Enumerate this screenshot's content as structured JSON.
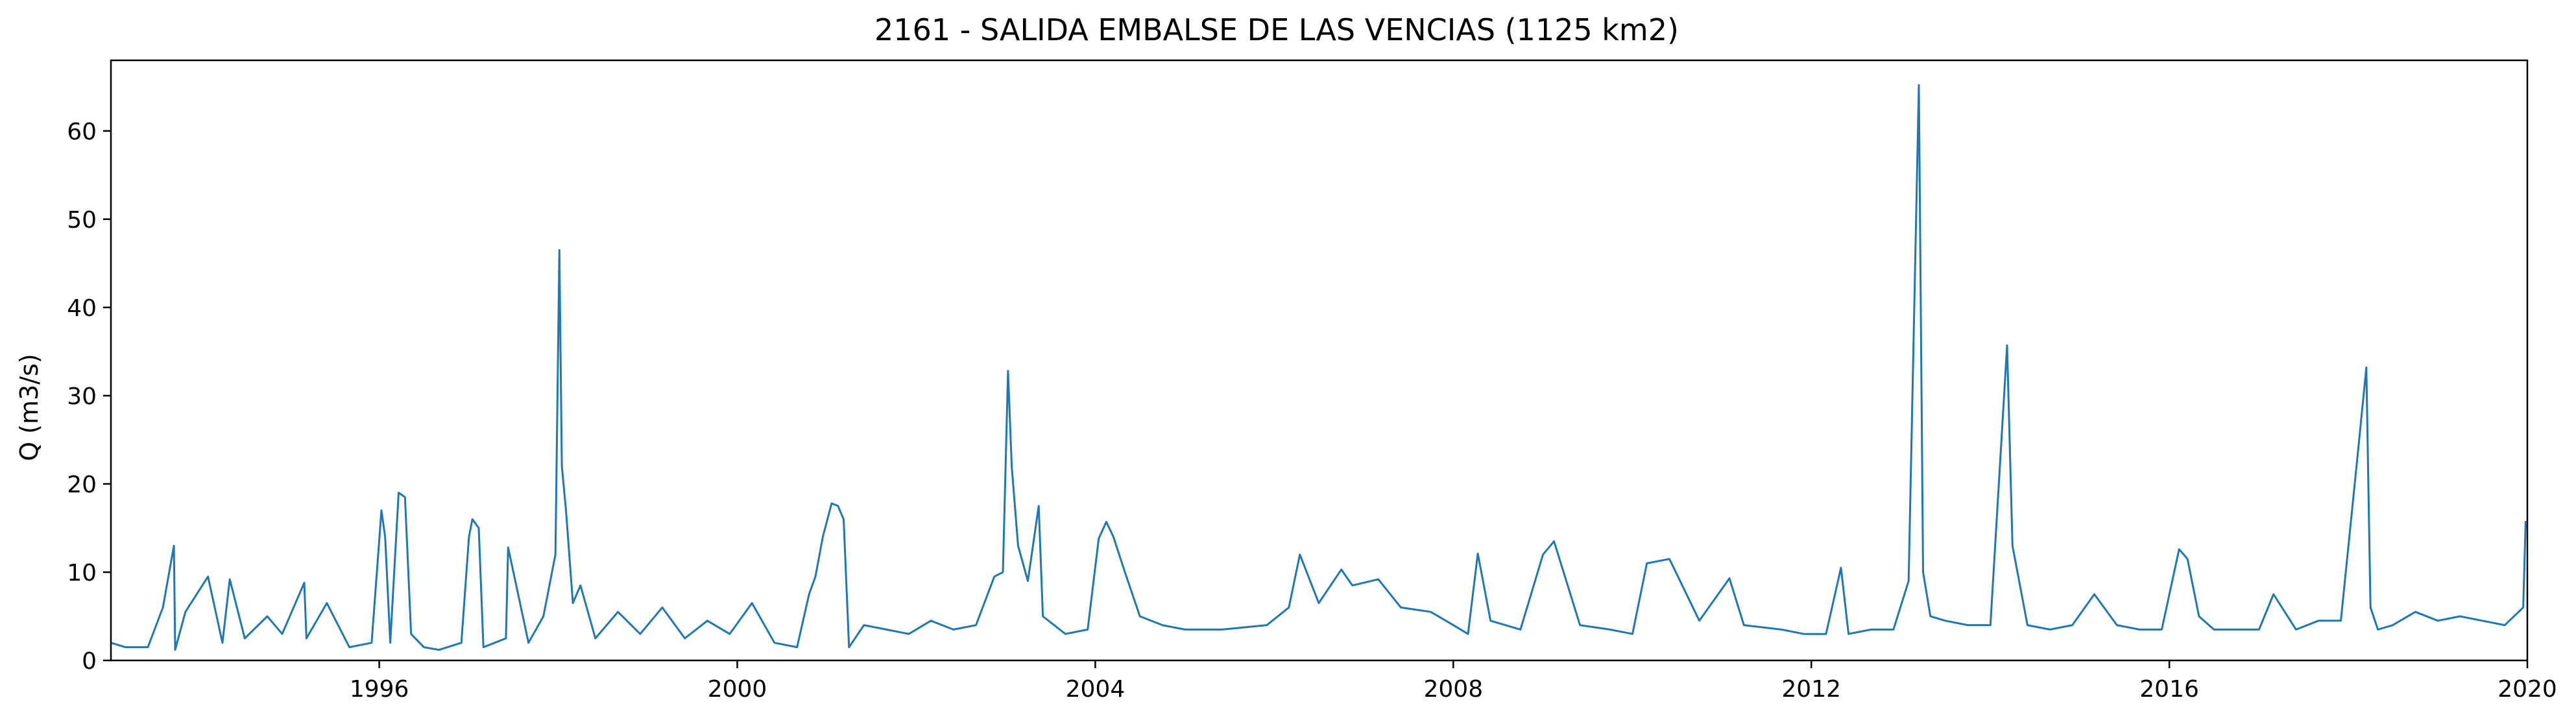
{
  "chart_data": {
    "type": "line",
    "title": "2161 - SALIDA EMBALSE DE LAS VENCIAS (1125 km2)",
    "xlabel": "",
    "ylabel": "Q (m3/s)",
    "xlim": [
      "1993-01-01",
      "2020-01-01"
    ],
    "ylim": [
      0,
      68
    ],
    "grid": false,
    "legend": "none",
    "x_ticks": [
      "1996",
      "2000",
      "2004",
      "2008",
      "2012",
      "2016",
      "2020"
    ],
    "y_ticks": [
      "0",
      "10",
      "20",
      "30",
      "40",
      "50",
      "60"
    ],
    "series": [
      {
        "color": "#1f77b4",
        "x": [
          "1993-01-01",
          "1993-03-01",
          "1993-06-01",
          "1993-08-01",
          "1993-09-15",
          "1993-09-20",
          "1993-11-01",
          "1994-02-01",
          "1994-04-01",
          "1994-05-01",
          "1994-07-01",
          "1994-10-01",
          "1994-12-01",
          "1995-03-01",
          "1995-03-10",
          "1995-06-01",
          "1995-09-01",
          "1995-12-01",
          "1996-01-10",
          "1996-01-25",
          "1996-02-15",
          "1996-03-20",
          "1996-04-15",
          "1996-05-10",
          "1996-07-01",
          "1996-09-01",
          "1996-12-01",
          "1997-01-01",
          "1997-01-15",
          "1997-02-10",
          "1997-03-01",
          "1997-06-01",
          "1997-06-10",
          "1997-09-01",
          "1997-11-01",
          "1997-12-20",
          "1998-01-05",
          "1998-01-15",
          "1998-02-01",
          "1998-03-01",
          "1998-04-01",
          "1998-06-01",
          "1998-09-01",
          "1998-12-01",
          "1999-03-01",
          "1999-06-01",
          "1999-09-01",
          "1999-12-01",
          "2000-03-01",
          "2000-06-01",
          "2000-09-01",
          "2000-10-20",
          "2000-11-15",
          "2000-12-15",
          "2001-01-20",
          "2001-02-15",
          "2001-03-10",
          "2001-04-01",
          "2001-06-01",
          "2001-09-01",
          "2001-12-01",
          "2002-03-01",
          "2002-06-01",
          "2002-09-01",
          "2002-11-15",
          "2002-12-20",
          "2003-01-10",
          "2003-01-25",
          "2003-02-20",
          "2003-04-01",
          "2003-05-15",
          "2003-06-01",
          "2003-09-01",
          "2003-12-01",
          "2004-01-15",
          "2004-02-15",
          "2004-03-15",
          "2004-05-01",
          "2004-07-01",
          "2004-10-01",
          "2005-01-01",
          "2005-06-01",
          "2005-12-01",
          "2006-03-01",
          "2006-04-15",
          "2006-07-01",
          "2006-10-01",
          "2006-11-15",
          "2007-03-01",
          "2007-06-01",
          "2007-10-01",
          "2008-01-01",
          "2008-03-01",
          "2008-04-10",
          "2008-06-01",
          "2008-10-01",
          "2009-01-01",
          "2009-02-15",
          "2009-06-01",
          "2009-10-01",
          "2010-01-01",
          "2010-03-01",
          "2010-06-01",
          "2010-10-01",
          "2011-02-01",
          "2011-04-01",
          "2011-09-01",
          "2011-12-01",
          "2012-03-01",
          "2012-05-01",
          "2012-06-01",
          "2012-09-01",
          "2012-12-01",
          "2013-02-01",
          "2013-03-15",
          "2013-04-01",
          "2013-05-01",
          "2013-07-01",
          "2013-10-01",
          "2014-01-01",
          "2014-03-10",
          "2014-04-01",
          "2014-06-01",
          "2014-09-01",
          "2014-12-01",
          "2015-03-01",
          "2015-06-01",
          "2015-09-01",
          "2015-12-01",
          "2016-02-10",
          "2016-03-15",
          "2016-05-01",
          "2016-07-01",
          "2016-10-01",
          "2017-01-01",
          "2017-03-01",
          "2017-06-01",
          "2017-09-01",
          "2017-12-01",
          "2018-02-10",
          "2018-03-15",
          "2018-04-01",
          "2018-05-01",
          "2018-07-01",
          "2018-10-01",
          "2019-01-01",
          "2019-04-01",
          "2019-07-01",
          "2019-10-01",
          "2019-12-15",
          "2019-12-25"
        ],
        "y": [
          2.0,
          1.5,
          1.5,
          6.0,
          13.0,
          1.2,
          5.5,
          9.5,
          2.0,
          9.2,
          2.5,
          5.0,
          3.0,
          8.8,
          2.5,
          6.5,
          1.5,
          2.0,
          17.0,
          14.0,
          2.0,
          19.0,
          18.5,
          3.0,
          1.5,
          1.2,
          2.0,
          14.0,
          16.0,
          15.0,
          1.5,
          2.5,
          12.8,
          2.0,
          5.0,
          12.0,
          46.5,
          22.0,
          17.0,
          6.5,
          8.5,
          2.5,
          5.5,
          3.0,
          6.0,
          2.5,
          4.5,
          3.0,
          6.5,
          2.0,
          1.5,
          7.5,
          9.5,
          14.0,
          17.8,
          17.5,
          16.0,
          1.5,
          4.0,
          3.5,
          3.0,
          4.5,
          3.5,
          4.0,
          9.5,
          10.0,
          32.8,
          22.0,
          13.0,
          9.0,
          17.5,
          5.0,
          3.0,
          3.5,
          13.8,
          15.7,
          14.0,
          10.0,
          5.0,
          4.0,
          3.5,
          3.5,
          4.0,
          6.0,
          12.0,
          6.5,
          10.3,
          8.5,
          9.2,
          6.0,
          5.5,
          4.0,
          3.0,
          12.1,
          4.5,
          3.5,
          12.0,
          13.5,
          4.0,
          3.5,
          3.0,
          11.0,
          11.5,
          4.5,
          9.3,
          4.0,
          3.5,
          3.0,
          3.0,
          10.5,
          3.0,
          3.5,
          3.5,
          9.0,
          65.2,
          10.0,
          5.0,
          4.5,
          4.0,
          4.0,
          35.7,
          13.0,
          4.0,
          3.5,
          4.0,
          7.5,
          4.0,
          3.5,
          3.5,
          12.6,
          11.5,
          5.0,
          3.5,
          3.5,
          3.5,
          7.5,
          3.5,
          4.5,
          4.5,
          24.0,
          33.2,
          6.0,
          3.5,
          4.0,
          5.5,
          4.5,
          5.0,
          4.5,
          4.0,
          6.0,
          15.8
        ]
      }
    ]
  }
}
